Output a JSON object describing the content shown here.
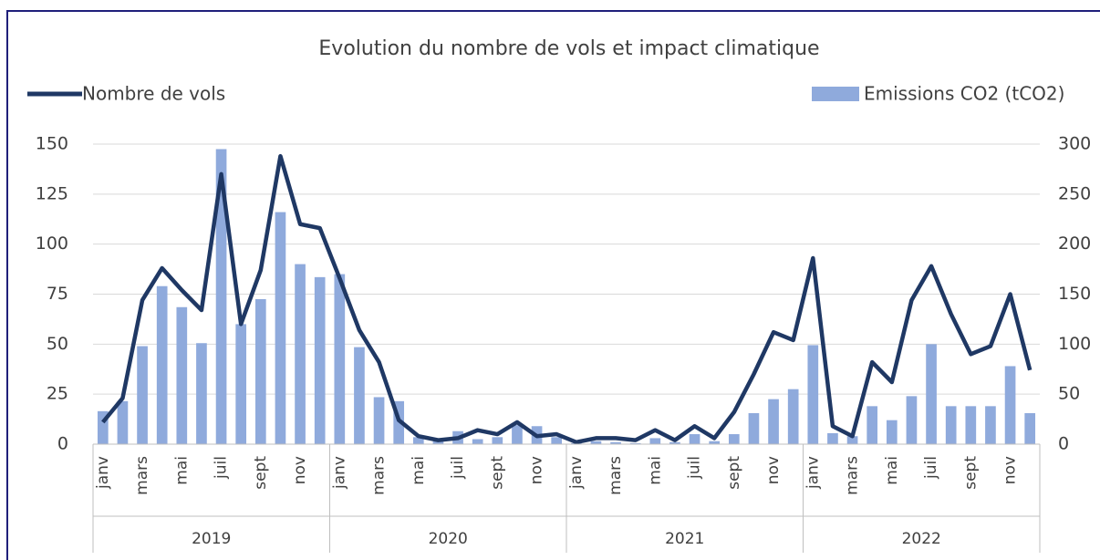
{
  "chart_data": {
    "type": "bar+line",
    "title": "Evolution du nombre de vols et impact climatique",
    "categories": [
      "janv",
      null,
      "mars",
      null,
      "mai",
      null,
      "juil",
      null,
      "sept",
      null,
      "nov",
      null,
      "janv",
      null,
      "mars",
      null,
      "mai",
      null,
      "juil",
      null,
      "sept",
      null,
      "nov",
      null,
      "janv",
      null,
      "mars",
      null,
      "mai",
      null,
      "juil",
      null,
      "sept",
      null,
      "nov",
      null,
      "janv",
      null,
      "mars",
      null,
      "mai",
      null,
      "juil",
      null,
      "sept",
      null,
      "nov",
      null
    ],
    "groups": [
      "2019",
      "2020",
      "2021",
      "2022"
    ],
    "series": [
      {
        "name": "Nombre de vols",
        "type": "line",
        "color": "#1f3864",
        "axis": "y",
        "values": [
          11,
          23,
          72,
          88,
          77,
          67,
          135,
          60,
          87,
          144,
          110,
          108,
          83,
          57,
          41,
          12,
          4,
          2,
          3,
          7,
          5,
          11,
          4,
          5,
          1,
          3,
          3,
          2,
          7,
          2,
          9,
          3,
          16,
          35,
          56,
          52,
          93,
          9,
          4,
          41,
          31,
          72,
          89,
          65,
          45,
          49,
          75,
          37
        ]
      },
      {
        "name": "Emissions CO2 (tCO2)",
        "type": "bar",
        "color": "#8faadc",
        "axis": "y2",
        "values": [
          33,
          43,
          98,
          158,
          137,
          101,
          295,
          120,
          145,
          232,
          180,
          167,
          170,
          97,
          47,
          43,
          7,
          3,
          13,
          5,
          7,
          19,
          18,
          7,
          1,
          3,
          2,
          1,
          6,
          2,
          10,
          3,
          10,
          31,
          45,
          55,
          99,
          11,
          8,
          38,
          24,
          48,
          100,
          38,
          38,
          38,
          78,
          31
        ]
      }
    ],
    "ylim": [
      0,
      150
    ],
    "yticks": [
      0,
      25,
      50,
      75,
      100,
      125,
      150
    ],
    "y2lim": [
      0,
      300
    ],
    "y2ticks": [
      0,
      50,
      100,
      150,
      200,
      250,
      300
    ],
    "grid": true
  }
}
